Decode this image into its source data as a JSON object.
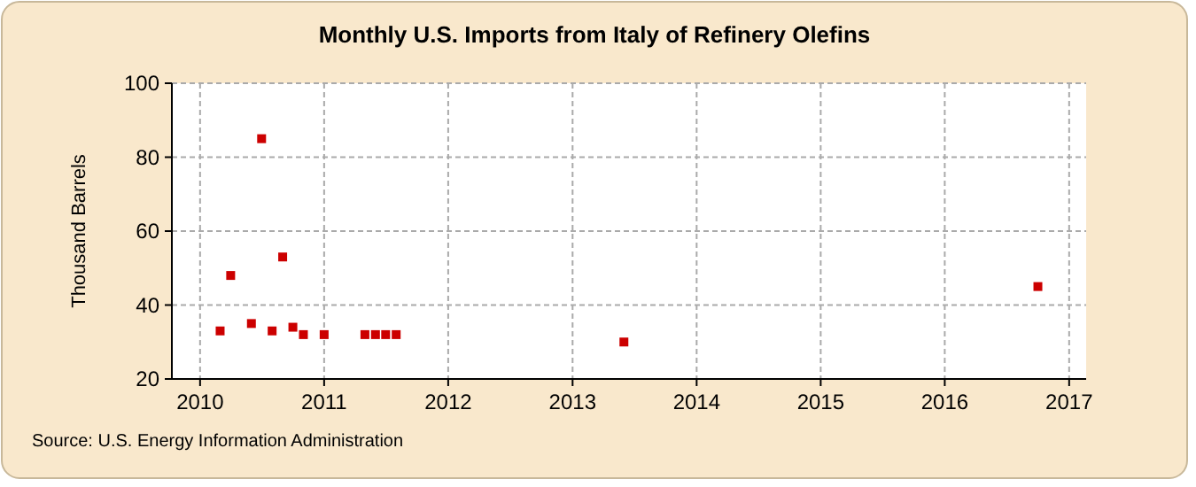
{
  "chart_data": {
    "type": "scatter",
    "title": "Monthly U.S. Imports from Italy of Refinery Olefins",
    "ylabel": "Thousand Barrels",
    "x": [
      "2010-03",
      "2010-04",
      "2010-06",
      "2010-07",
      "2010-08",
      "2010-09",
      "2010-10",
      "2010-11",
      "2011-01",
      "2011-05",
      "2011-06",
      "2011-07",
      "2011-08",
      "2013-06",
      "2016-10"
    ],
    "series": [
      {
        "color": "#cc0000",
        "values": [
          33,
          48,
          35,
          85,
          33,
          53,
          34,
          32,
          32,
          32,
          32,
          32,
          32,
          30,
          45
        ]
      }
    ],
    "xlim": [
      "2009-10-10",
      "2017-02-20"
    ],
    "xticks": [
      {
        "value": "2010",
        "label": "2010"
      },
      {
        "value": "2011",
        "label": "2011"
      },
      {
        "value": "2012",
        "label": "2012"
      },
      {
        "value": "2013",
        "label": "2013"
      },
      {
        "value": "2014",
        "label": "2014"
      },
      {
        "value": "2015",
        "label": "2015"
      },
      {
        "value": "2016",
        "label": "2016"
      },
      {
        "value": "2017",
        "label": "2017"
      }
    ],
    "ylim": [
      20,
      100
    ],
    "yticks": [
      20,
      40,
      60,
      80,
      100
    ],
    "grid": true,
    "marker": "square",
    "annotations": [
      "Source: U.S. Energy Information Administration"
    ]
  }
}
